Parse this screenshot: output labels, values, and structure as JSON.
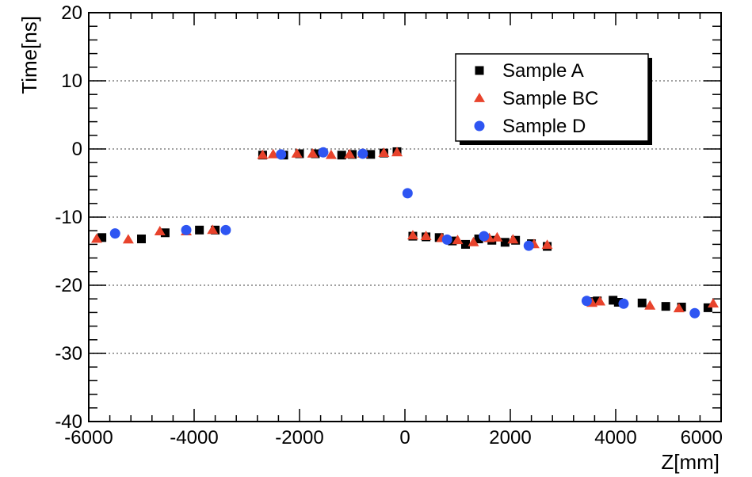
{
  "chart_data": {
    "type": "scatter",
    "xlabel": "Z[mm]",
    "ylabel": "Time[ns]",
    "xlim": [
      -6000,
      6000
    ],
    "ylim": [
      -40,
      20
    ],
    "xticks": [
      -6000,
      -4000,
      -2000,
      0,
      2000,
      4000,
      6000
    ],
    "yticks": [
      -40,
      -30,
      -20,
      -10,
      0,
      10,
      20
    ],
    "grid": "horizontal dotted",
    "legend_position": "top-right",
    "series": [
      {
        "name": "Sample A",
        "marker": "square",
        "color": "#000000",
        "points": [
          [
            -5750,
            -13.0
          ],
          [
            -5000,
            -13.2
          ],
          [
            -4550,
            -12.3
          ],
          [
            -3900,
            -11.9
          ],
          [
            -3600,
            -11.9
          ],
          [
            -2700,
            -0.9
          ],
          [
            -2300,
            -0.9
          ],
          [
            -2000,
            -0.7
          ],
          [
            -1700,
            -0.7
          ],
          [
            -1200,
            -0.9
          ],
          [
            -1000,
            -0.8
          ],
          [
            -650,
            -0.8
          ],
          [
            -400,
            -0.6
          ],
          [
            -150,
            -0.4
          ],
          [
            150,
            -12.8
          ],
          [
            400,
            -12.9
          ],
          [
            650,
            -13.0
          ],
          [
            900,
            -13.5
          ],
          [
            1150,
            -14.0
          ],
          [
            1400,
            -13.2
          ],
          [
            1650,
            -13.4
          ],
          [
            1900,
            -13.7
          ],
          [
            2100,
            -13.4
          ],
          [
            2400,
            -13.9
          ],
          [
            2700,
            -14.3
          ],
          [
            3550,
            -22.4
          ],
          [
            3650,
            -22.3
          ],
          [
            3950,
            -22.2
          ],
          [
            4050,
            -22.5
          ],
          [
            4500,
            -22.6
          ],
          [
            4950,
            -23.1
          ],
          [
            5250,
            -23.2
          ],
          [
            5750,
            -23.3
          ]
        ]
      },
      {
        "name": "Sample BC",
        "marker": "triangle",
        "color": "#e8432c",
        "points": [
          [
            -5850,
            -13.2
          ],
          [
            -5250,
            -13.3
          ],
          [
            -4650,
            -12.1
          ],
          [
            -4150,
            -12.1
          ],
          [
            -3650,
            -11.9
          ],
          [
            -2700,
            -0.9
          ],
          [
            -2500,
            -0.8
          ],
          [
            -2050,
            -0.7
          ],
          [
            -1750,
            -0.7
          ],
          [
            -1400,
            -0.9
          ],
          [
            -1050,
            -0.8
          ],
          [
            -800,
            -0.7
          ],
          [
            -400,
            -0.6
          ],
          [
            -150,
            -0.5
          ],
          [
            150,
            -12.7
          ],
          [
            400,
            -12.8
          ],
          [
            700,
            -13.1
          ],
          [
            1000,
            -13.4
          ],
          [
            1300,
            -13.7
          ],
          [
            1600,
            -13.1
          ],
          [
            1750,
            -13.0
          ],
          [
            2050,
            -13.3
          ],
          [
            2450,
            -14.0
          ],
          [
            2700,
            -14.1
          ],
          [
            3550,
            -22.6
          ],
          [
            3700,
            -22.4
          ],
          [
            4650,
            -23.0
          ],
          [
            5200,
            -23.4
          ],
          [
            5850,
            -22.7
          ]
        ]
      },
      {
        "name": "Sample D",
        "marker": "circle",
        "color": "#2e55f2",
        "points": [
          [
            -5500,
            -12.4
          ],
          [
            -4150,
            -11.9
          ],
          [
            -3400,
            -11.9
          ],
          [
            -2350,
            -0.8
          ],
          [
            -1550,
            -0.5
          ],
          [
            -800,
            -0.7
          ],
          [
            50,
            -6.5
          ],
          [
            800,
            -13.3
          ],
          [
            1500,
            -12.8
          ],
          [
            2350,
            -14.2
          ],
          [
            3450,
            -22.3
          ],
          [
            4150,
            -22.7
          ],
          [
            5500,
            -24.1
          ]
        ]
      }
    ]
  }
}
